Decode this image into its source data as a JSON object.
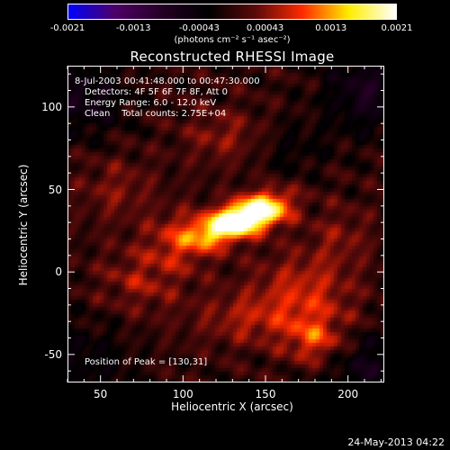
{
  "colorbar": {
    "ticks": [
      "-0.0021",
      "-0.0013",
      "-0.00043",
      "0.00043",
      "0.0013",
      "0.0021"
    ],
    "units": "(photons cm⁻² s⁻¹ asec⁻²)",
    "colormap": [
      "#0000ff",
      "#4d0066",
      "#240024",
      "#000000",
      "#5a0a0a",
      "#ff2a00",
      "#ffee00",
      "#ffffff"
    ]
  },
  "header": {
    "title": "Reconstructed RHESSI Image"
  },
  "info": {
    "time_range": "8-Jul-2003 00:41:48.000 to 00:47:30.000",
    "detectors": "Detectors: 4F 5F 6F 7F 8F, Att 0",
    "energy_range": "Energy Range: 6.0 - 12.0 keV",
    "clean_counts": "Clean    Total counts: 2.75E+04",
    "peak_position": "Position of Peak = [130,31]"
  },
  "footer": {
    "date": "24-May-2013 04:22"
  },
  "chart_data": {
    "type": "heatmap",
    "title": "Reconstructed RHESSI Image",
    "xlabel": "Heliocentric X (arcsec)",
    "ylabel": "Heliocentric Y (arcsec)",
    "xlim": [
      30,
      222
    ],
    "ylim": [
      -67,
      125
    ],
    "xticks": [
      "50",
      "100",
      "150",
      "200"
    ],
    "xtick_values": [
      50,
      100,
      150,
      200
    ],
    "yticks": [
      "100",
      "50",
      "0",
      "-50"
    ],
    "ytick_values": [
      100,
      50,
      0,
      -50
    ],
    "zlim": [
      -0.0021,
      0.0021
    ],
    "peak": [
      130,
      31
    ],
    "sources": [
      {
        "x": 133,
        "y": 31,
        "sx": 17,
        "sy": 7,
        "angle": 20,
        "amp": 0.0024
      },
      {
        "x": 150,
        "y": 38,
        "sx": 12,
        "sy": 8,
        "angle": 10,
        "amp": 0.0009
      },
      {
        "x": 100,
        "y": 20,
        "sx": 15,
        "sy": 12,
        "angle": 0,
        "amp": 0.0007
      },
      {
        "x": 175,
        "y": -10,
        "sx": 22,
        "sy": 14,
        "angle": -20,
        "amp": 0.0006
      },
      {
        "x": 75,
        "y": -5,
        "sx": 18,
        "sy": 14,
        "angle": 0,
        "amp": 0.0005
      },
      {
        "x": 60,
        "y": 50,
        "sx": 16,
        "sy": 14,
        "angle": 0,
        "amp": 0.0004
      },
      {
        "x": 125,
        "y": 82,
        "sx": 18,
        "sy": 12,
        "angle": 0,
        "amp": 0.00045
      },
      {
        "x": 145,
        "y": -28,
        "sx": 26,
        "sy": 12,
        "angle": 0,
        "amp": 0.0006
      },
      {
        "x": 180,
        "y": -42,
        "sx": 12,
        "sy": 10,
        "angle": 0,
        "amp": 0.0008
      },
      {
        "x": 195,
        "y": 20,
        "sx": 14,
        "sy": 14,
        "angle": 0,
        "amp": 0.0004
      },
      {
        "x": 40,
        "y": 105,
        "sx": 18,
        "sy": 16,
        "angle": 0,
        "amp": -0.0006
      },
      {
        "x": 212,
        "y": 110,
        "sx": 18,
        "sy": 18,
        "angle": 0,
        "amp": -0.0007
      },
      {
        "x": 215,
        "y": -60,
        "sx": 20,
        "sy": 16,
        "angle": 0,
        "amp": -0.0006
      },
      {
        "x": 40,
        "y": -55,
        "sx": 20,
        "sy": 18,
        "angle": 0,
        "amp": -0.0004
      },
      {
        "x": 165,
        "y": 75,
        "sx": 16,
        "sy": 12,
        "angle": 0,
        "amp": -0.0003
      }
    ]
  }
}
